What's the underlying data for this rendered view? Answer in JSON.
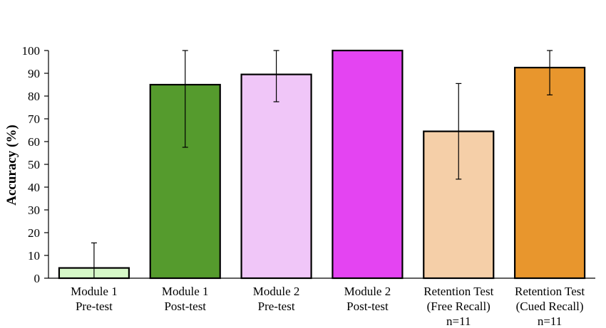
{
  "chart_data": {
    "type": "bar",
    "ylabel": "Accuracy (%)",
    "xlabel": "",
    "ylim": [
      0,
      100
    ],
    "yticks": [
      0,
      10,
      20,
      30,
      40,
      50,
      60,
      70,
      80,
      90,
      100
    ],
    "grid": false,
    "categories": [
      {
        "lines": [
          "Module 1",
          "Pre-test"
        ],
        "value": 4.5,
        "err_low": 0,
        "err_high": 15.5,
        "color": "#d6f7c8"
      },
      {
        "lines": [
          "Module 1",
          "Post-test"
        ],
        "value": 85,
        "err_low": 57.5,
        "err_high": 100,
        "color": "#559b2d"
      },
      {
        "lines": [
          "Module 2",
          "Pre-test"
        ],
        "value": 89.5,
        "err_low": 77.5,
        "err_high": 100,
        "color": "#f0c6f8"
      },
      {
        "lines": [
          "Module 2",
          "Post-test"
        ],
        "value": 100,
        "err_low": 100,
        "err_high": 100,
        "color": "#e444f2"
      },
      {
        "lines": [
          "Retention Test",
          "(Free Recall)",
          "n=11"
        ],
        "value": 64.5,
        "err_low": 43.5,
        "err_high": 85.5,
        "color": "#f5cfa8"
      },
      {
        "lines": [
          "Retention Test",
          "(Cued Recall)",
          "n=11"
        ],
        "value": 92.5,
        "err_low": 80.5,
        "err_high": 100,
        "color": "#e8962d"
      }
    ]
  }
}
